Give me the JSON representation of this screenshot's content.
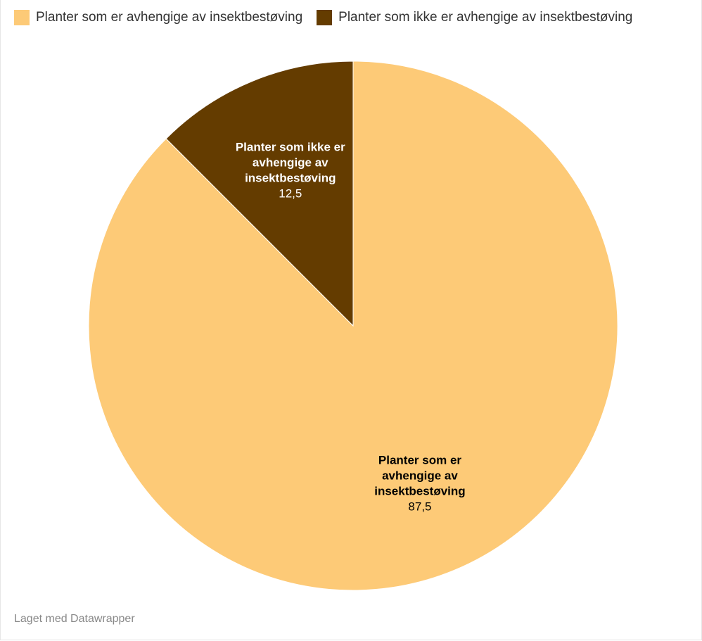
{
  "chart_data": {
    "type": "pie",
    "title": "",
    "series": [
      {
        "name": "Planter som er avhengige av insektbestøving",
        "value": 87.5,
        "value_label": "87,5",
        "color": "#fdca77",
        "label_color": "#000000",
        "label_lines": [
          "Planter som er",
          "avhengige av",
          "insektbestøving"
        ]
      },
      {
        "name": "Planter som ikke er avhengige av insektbestøving",
        "value": 12.5,
        "value_label": "12,5",
        "color": "#643c00",
        "label_color": "#ffffff",
        "label_lines": [
          "Planter som ikke er",
          "avhengige av",
          "insektbestøving"
        ]
      }
    ],
    "legend_position": "top-left",
    "start_angle_deg": 0,
    "direction": "clockwise",
    "slice_border_color": "#ffffff"
  },
  "legend": {
    "items": [
      {
        "label": "Planter som er avhengige av insektbestøving",
        "color": "#fdca77"
      },
      {
        "label": "Planter som ikke er avhengige av insektbestøving",
        "color": "#643c00"
      }
    ]
  },
  "footer": {
    "credit": "Laget med Datawrapper"
  }
}
